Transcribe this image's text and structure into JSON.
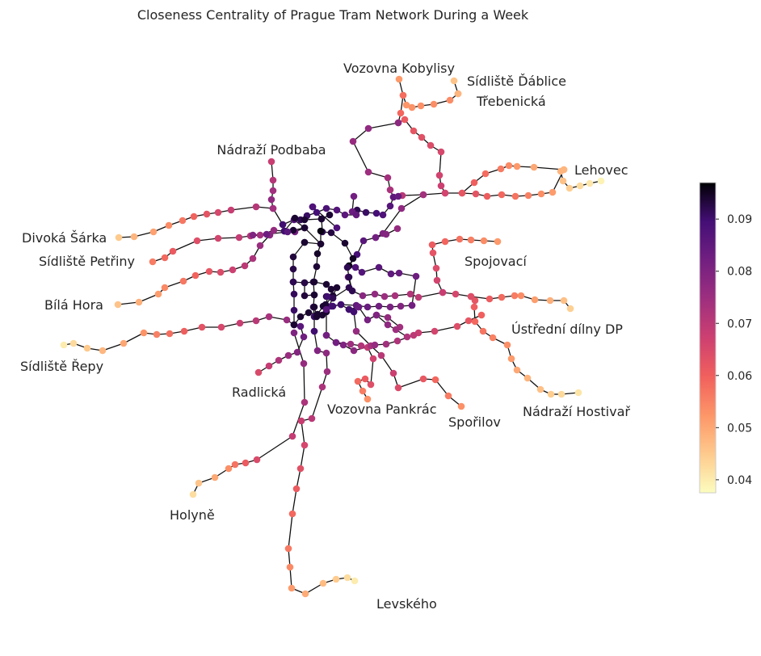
{
  "title": "Closeness Centrality of Prague Tram Network During a Week",
  "colorbar": {
    "min": 0.0375,
    "max": 0.097,
    "colormap": "magma_r",
    "ticks": [
      "0.04",
      "0.05",
      "0.06",
      "0.07",
      "0.08",
      "0.09"
    ],
    "tick_values": [
      0.04,
      0.05,
      0.06,
      0.07,
      0.08,
      0.09
    ]
  },
  "terminal_labels": [
    "Vozovna Kobylisy",
    "Sídliště Ďáblice",
    "Třebenická",
    "Nádraží Podbaba",
    "Lehovec",
    "Divoká Šárka",
    "Sídliště Petřiny",
    "Spojovací",
    "Bílá Hora",
    "Ústřední dílny DP",
    "Sídliště Řepy",
    "Radlická",
    "Vozovna Pankrác",
    "Nádraží Hostivař",
    "Spořilov",
    "Holyně",
    "Levského"
  ]
}
